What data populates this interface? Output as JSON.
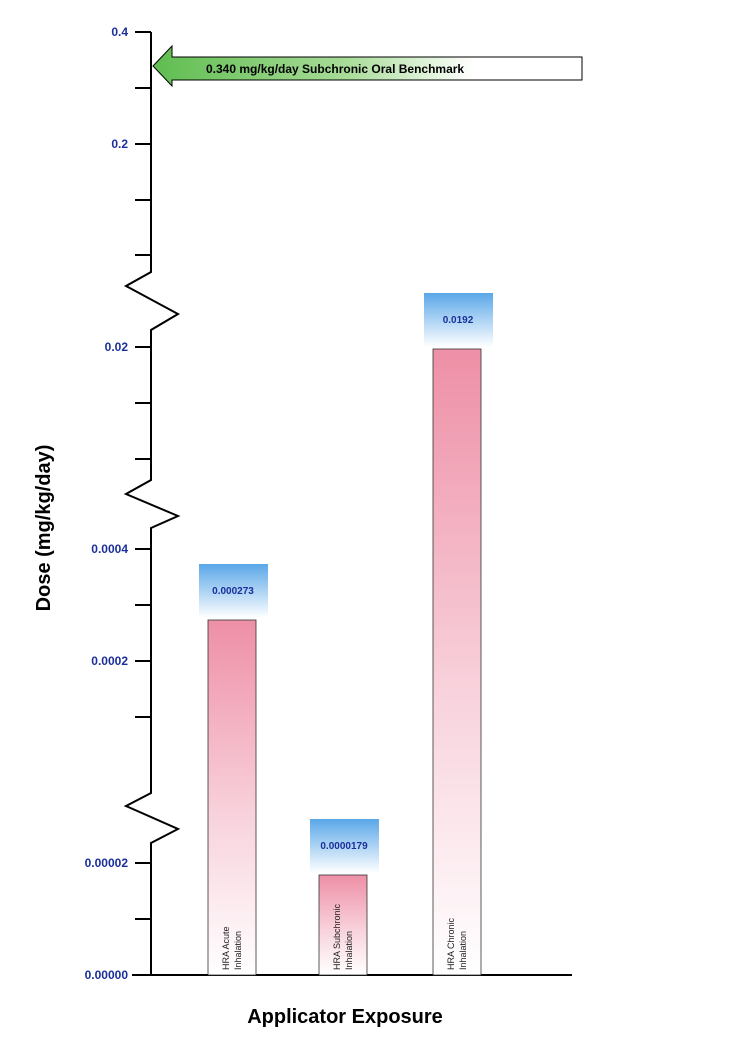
{
  "chart_data": {
    "type": "bar",
    "xlabel": "Applicator Exposure",
    "ylabel": "Dose (mg/kg/day)",
    "y_axis": "broken axis with three scale breaks",
    "y_ticks": [
      "0.4",
      "0.2",
      "0.02",
      "0.0004",
      "0.0002",
      "0.00002",
      "0.00000"
    ],
    "categories": [
      "HRA Acute Inhalation",
      "HRA Subchronic Inhalation",
      "HRA Chronic Inhalation"
    ],
    "category_lines": [
      [
        "HRA Acute",
        "Inhalation"
      ],
      [
        "HRA Subchronic",
        "Inhalation"
      ],
      [
        "HRA Chronic",
        "Inhalation"
      ]
    ],
    "values": [
      0.000273,
      1.79e-05,
      0.0192
    ],
    "value_labels": [
      "0.000273",
      "0.0000179",
      "0.0192"
    ],
    "benchmark": {
      "value": 0.34,
      "label": "0.340 mg/kg/day Subchronic Oral Benchmark"
    },
    "colors": {
      "tick_text": "#1a2f9a",
      "bar": "#ee8fa6",
      "value_box": "#6fb6ec",
      "benchmark_arrow": "#6cc35c"
    }
  }
}
